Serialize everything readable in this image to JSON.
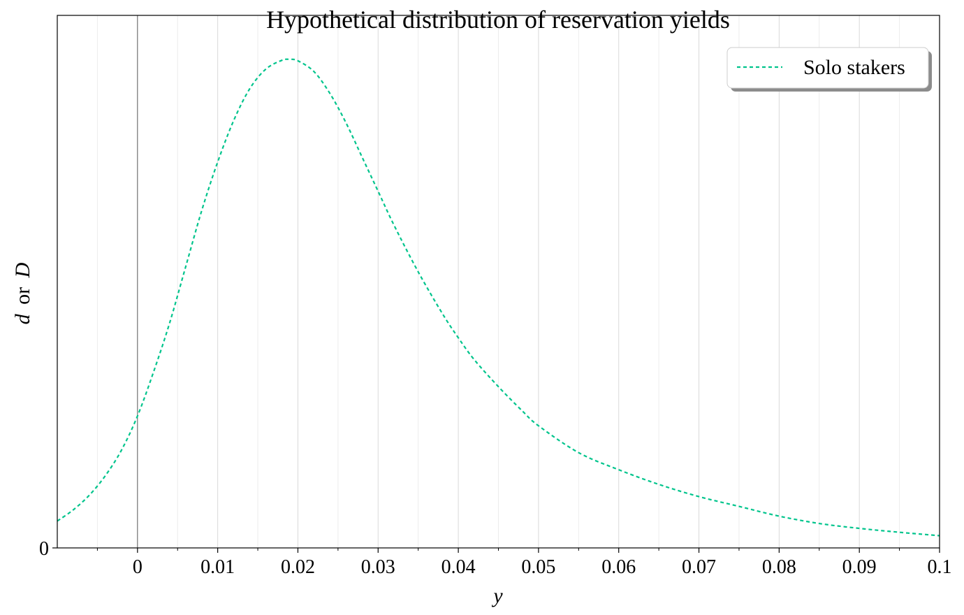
{
  "chart_data": {
    "type": "line",
    "title": "Hypothetical distribution of reservation yields",
    "xlabel": "y",
    "ylabel_var1": "d",
    "ylabel_or": "or",
    "ylabel_var2": "D",
    "xlim": [
      -0.01,
      0.1
    ],
    "ylim": [
      0,
      1.09
    ],
    "x_ticks": [
      0,
      0.01,
      0.02,
      0.03,
      0.04,
      0.05,
      0.06,
      0.07,
      0.08,
      0.09,
      0.1
    ],
    "x_tick_labels": [
      "0",
      "0.01",
      "0.02",
      "0.03",
      "0.04",
      "0.05",
      "0.06",
      "0.07",
      "0.08",
      "0.09",
      "0.1"
    ],
    "y_ticks": [
      0
    ],
    "y_tick_labels": [
      "0"
    ],
    "grid": "vertical major and minor",
    "legend_position": "top-right",
    "series": [
      {
        "name": "Solo stakers",
        "color": "#00c48c",
        "line_style": "dashed",
        "x": [
          -0.01,
          -0.008,
          -0.006,
          -0.004,
          -0.002,
          0,
          0.002,
          0.004,
          0.006,
          0.008,
          0.01,
          0.012,
          0.014,
          0.016,
          0.018,
          0.019,
          0.02,
          0.022,
          0.024,
          0.026,
          0.028,
          0.03,
          0.032,
          0.035,
          0.038,
          0.04,
          0.042,
          0.045,
          0.048,
          0.05,
          0.055,
          0.06,
          0.065,
          0.07,
          0.075,
          0.08,
          0.085,
          0.09,
          0.095,
          0.1
        ],
        "y": [
          0.055,
          0.078,
          0.108,
          0.148,
          0.2,
          0.27,
          0.36,
          0.46,
          0.575,
          0.69,
          0.79,
          0.875,
          0.94,
          0.98,
          0.998,
          1.0,
          0.997,
          0.975,
          0.93,
          0.87,
          0.8,
          0.73,
          0.66,
          0.565,
          0.48,
          0.43,
          0.385,
          0.33,
          0.28,
          0.25,
          0.195,
          0.16,
          0.13,
          0.105,
          0.085,
          0.065,
          0.05,
          0.04,
          0.032,
          0.025
        ]
      }
    ]
  }
}
